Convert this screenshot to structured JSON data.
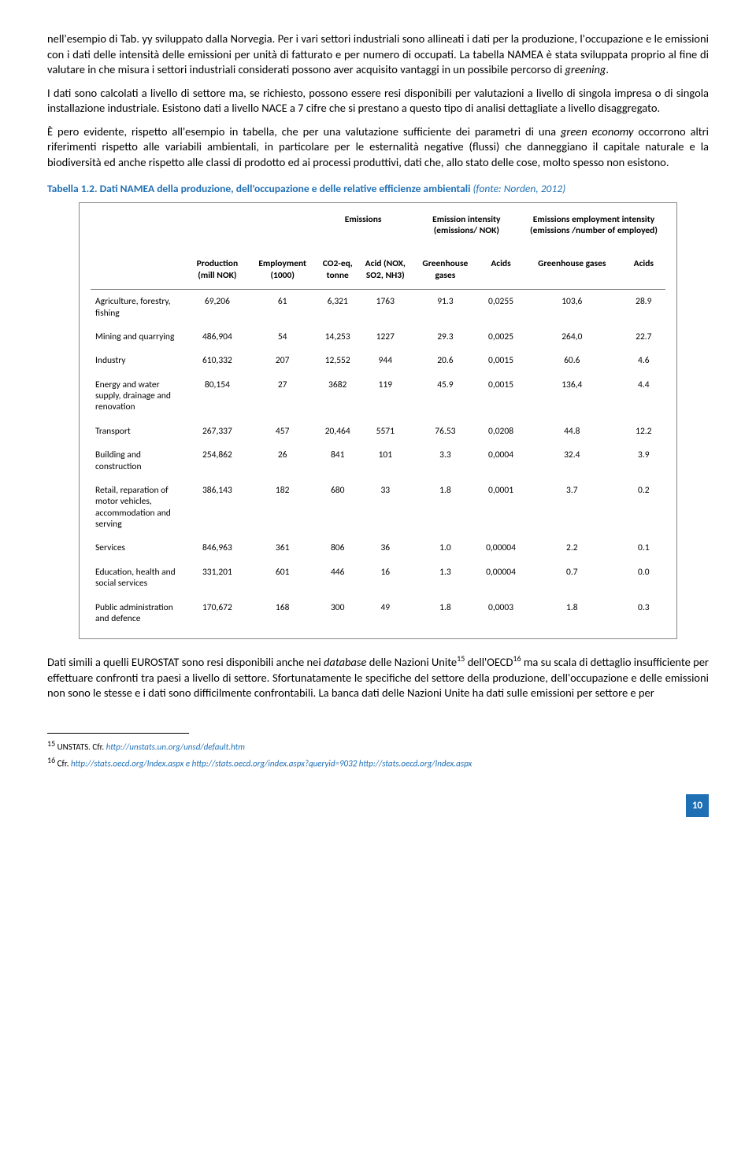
{
  "paragraphs": {
    "p1a": "nell'esempio di Tab. yy sviluppato dalla Norvegia. Per i vari settori industriali sono allineati i dati per la produzione, l'occupazione e le emissioni  con i dati delle intensità delle emissioni per unità di fatturato e per numero di occupati. La tabella NAMEA è stata sviluppata proprio al fine di valutare in che misura i settori industriali considerati possono aver acquisito vantaggi in un possibile percorso di ",
    "p1b": "greening",
    "p1c": ".",
    "p2": "I dati sono calcolati a livello di settore ma, se richiesto, possono essere resi disponibili per valutazioni a livello di singola impresa o di singola installazione industriale. Esistono dati a livello NACE a 7 cifre che si prestano  a questo tipo di  analisi dettagliate a livello disaggregato.",
    "p3a": "È pero evidente, rispetto all'esempio in tabella, che per una valutazione sufficiente dei parametri di una ",
    "p3b": "green economy",
    "p3c": " occorrono altri riferimenti rispetto alle variabili ambientali, in particolare per le esternalità negative (flussi) che danneggiano il capitale naturale e la biodiversità ed anche rispetto alle classi di prodotto ed ai processi produttivi, dati che, allo stato delle cose, molto spesso non esistono.",
    "p4a": "Dati simili a quelli EUROSTAT sono resi disponibili anche nei ",
    "p4b": "database",
    "p4c": " delle Nazioni Unite",
    "p4d": " dell'OECD",
    "p4e": " ma su scala di dettaglio insufficiente per effettuare confronti tra paesi a livello di settore. Sfortunatamente le specifiche del settore della produzione, dell'occupazione e delle emissioni non sono le stesse e i dati sono difficilmente confrontabili. La banca dati delle Nazioni Unite ha dati sulle emissioni per settore e per",
    "sup15": "15",
    "sup16": "16"
  },
  "caption": {
    "label": "Tabella 1.2. Dati NAMEA della produzione, dell'occupazione e delle relative efficienze ambientali ",
    "source": "(fonte: Norden, 2012)"
  },
  "table": {
    "group_headers": {
      "g1": "Emissions",
      "g2": "Emission intensity (emissions/ NOK)",
      "g3": "Emissions employment intensity (emissions /number of employed)"
    },
    "col_headers": {
      "c0": "",
      "c1": "Production (mill NOK)",
      "c2": "Employment (1000)",
      "c3": "CO2-eq, tonne",
      "c4": "Acid (NOX, SO2, NH3)",
      "c5": "Greenhouse gases",
      "c6": "Acids",
      "c7": "Greenhouse gases",
      "c8": "Acids"
    },
    "rows": [
      {
        "sector": "Agriculture, forestry, fishing",
        "v": [
          "69,206",
          "61",
          "6,321",
          "1763",
          "91.3",
          "0,0255",
          "103,6",
          "28.9"
        ]
      },
      {
        "sector": "Mining and quarrying",
        "v": [
          "486,904",
          "54",
          "14,253",
          "1227",
          "29.3",
          "0,0025",
          "264,0",
          "22.7"
        ]
      },
      {
        "sector": "Industry",
        "v": [
          "610,332",
          "207",
          "12,552",
          "944",
          "20.6",
          "0,0015",
          "60.6",
          "4.6"
        ]
      },
      {
        "sector": "Energy and water supply, drainage and renovation",
        "v": [
          "80,154",
          "27",
          "3682",
          "119",
          "45.9",
          "0,0015",
          "136,4",
          "4.4"
        ]
      },
      {
        "sector": "Transport",
        "v": [
          "267,337",
          "457",
          "20,464",
          "5571",
          "76.53",
          "0,0208",
          "44.8",
          "12.2"
        ]
      },
      {
        "sector": "Building and construction",
        "v": [
          "254,862",
          "26",
          "841",
          "101",
          "3.3",
          "0,0004",
          "32.4",
          "3.9"
        ]
      },
      {
        "sector": "Retail, reparation of motor vehicles, accommodation and serving",
        "v": [
          "386,143",
          "182",
          "680",
          "33",
          "1.8",
          "0,0001",
          "3.7",
          "0.2"
        ]
      },
      {
        "sector": "Services",
        "v": [
          "846,963",
          "361",
          "806",
          "36",
          "1.0",
          "0,00004",
          "2.2",
          "0.1"
        ]
      },
      {
        "sector": "Education, health and social services",
        "v": [
          "331,201",
          "601",
          "446",
          "16",
          "1.3",
          "0,00004",
          "0.7",
          "0.0"
        ]
      },
      {
        "sector": "Public administration and defence",
        "v": [
          "170,672",
          "168",
          "300",
          "49",
          "1.8",
          "0,0003",
          "1.8",
          "0.3"
        ]
      }
    ]
  },
  "footnotes": {
    "f15a": "15",
    "f15b": " UNSTATS. Cfr. ",
    "f15c": "http://unstats.un.org/unsd/default.htm",
    "f16a": "16",
    "f16b": " Cfr.  ",
    "f16c": "http://stats.oecd.org/Index.aspx e http://stats.oecd.org/index.aspx?queryid=9032 http://stats.oecd.org/Index.aspx"
  },
  "page_number": "10"
}
